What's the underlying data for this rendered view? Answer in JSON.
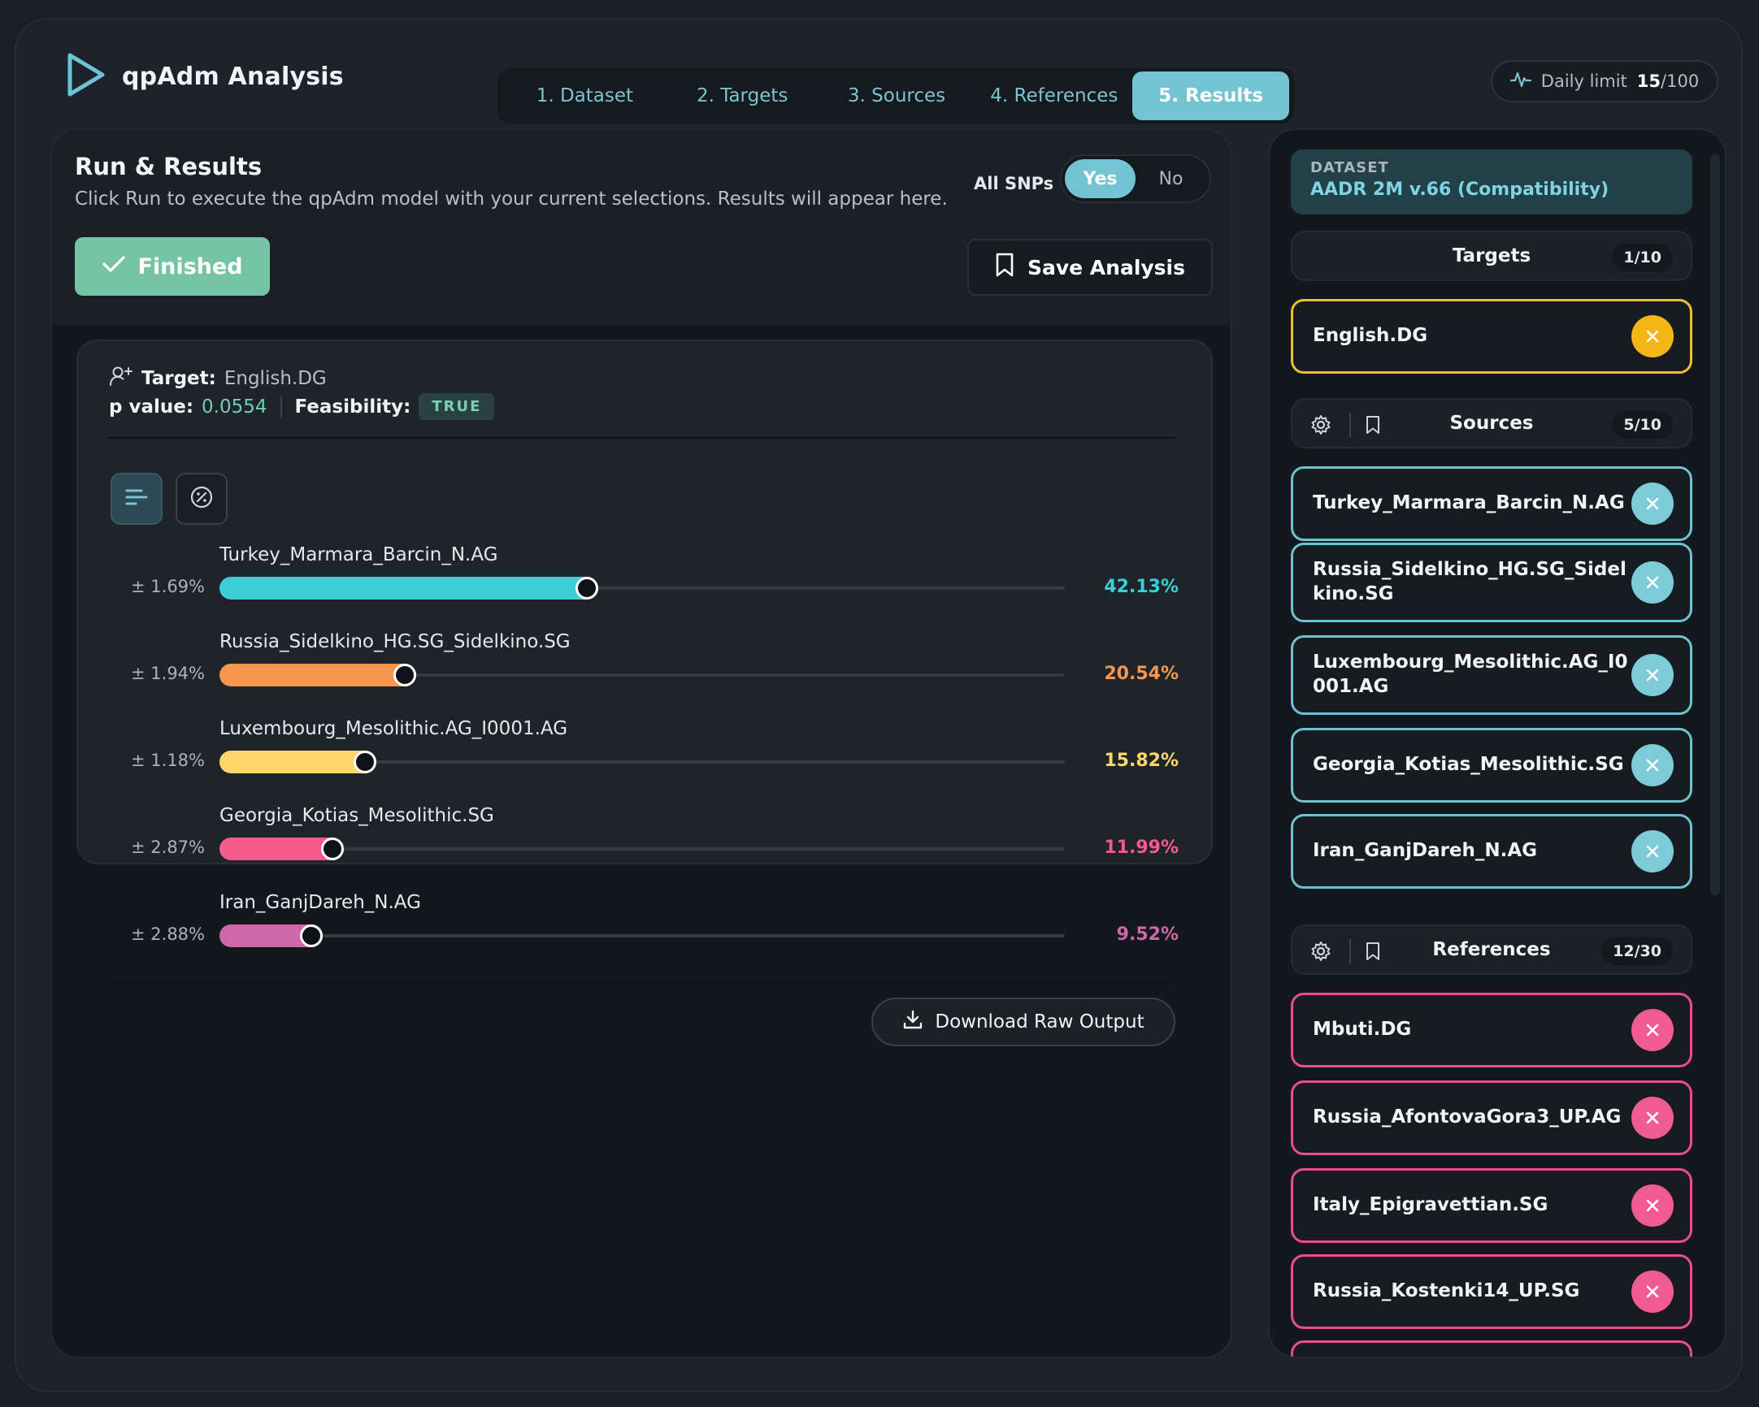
{
  "app": {
    "title": "qpAdm Analysis"
  },
  "tabs": [
    {
      "label": "1. Dataset",
      "active": false
    },
    {
      "label": "2. Targets",
      "active": false
    },
    {
      "label": "3. Sources",
      "active": false
    },
    {
      "label": "4. References",
      "active": false
    },
    {
      "label": "5. Results",
      "active": true
    }
  ],
  "daily_limit": {
    "label": "Daily limit",
    "used": "15",
    "total": "/100"
  },
  "run": {
    "title": "Run & Results",
    "subtitle": "Click Run to execute the qpAdm model with your current selections. Results will appear here.",
    "all_snps_label": "All SNPs",
    "snps_yes": "Yes",
    "snps_no": "No",
    "snps_selected": "Yes",
    "status_label": "Finished",
    "save_label": "Save Analysis"
  },
  "result": {
    "target_label": "Target:",
    "target_value": "English.DG",
    "pvalue_label": "p value:",
    "pvalue": "0.0554",
    "feasibility_label": "Feasibility:",
    "feasibility": "TRUE",
    "download_label": "Download Raw Output",
    "components": [
      {
        "name": "Turkey_Marmara_Barcin_N.AG",
        "error": "± 1.69%",
        "percent": "42.13%",
        "value": 42.13,
        "color": "#3dcfd6"
      },
      {
        "name": "Russia_Sidelkino_HG.SG_Sidelkino.SG",
        "error": "± 1.94%",
        "percent": "20.54%",
        "value": 20.54,
        "color": "#f7974e"
      },
      {
        "name": "Luxembourg_Mesolithic.AG_I0001.AG",
        "error": "± 1.18%",
        "percent": "15.82%",
        "value": 15.82,
        "color": "#fed76a"
      },
      {
        "name": "Georgia_Kotias_Mesolithic.SG",
        "error": "± 2.87%",
        "percent": "11.99%",
        "value": 11.99,
        "color": "#f65a8d"
      },
      {
        "name": "Iran_GanjDareh_N.AG",
        "error": "± 2.88%",
        "percent": "9.52%",
        "value": 9.52,
        "color": "#cf68a8"
      }
    ]
  },
  "sidebar": {
    "dataset_label": "DATASET",
    "dataset_value": "AADR 2M v.66 (Compatibility)",
    "targets": {
      "title": "Targets",
      "count": "1/10",
      "items": [
        "English.DG"
      ]
    },
    "sources": {
      "title": "Sources",
      "count": "5/10",
      "items": [
        "Turkey_Marmara_Barcin_N.AG",
        "Russia_Sidelkino_HG.SG_Sidelkino.SG",
        "Luxembourg_Mesolithic.AG_I0001.AG",
        "Georgia_Kotias_Mesolithic.SG",
        "Iran_GanjDareh_N.AG"
      ]
    },
    "references": {
      "title": "References",
      "count": "12/30",
      "items": [
        "Mbuti.DG",
        "Russia_AfontovaGora3_UP.AG",
        "Italy_Epigravettian.SG",
        "Russia_Kostenki14_UP.SG",
        ""
      ]
    }
  },
  "icons": {
    "logo": "play-outline-icon",
    "daily": "activity-icon",
    "finished": "check-icon",
    "save": "bookmark-icon",
    "target": "user-share-icon",
    "bar_view": "bars-icon",
    "percent_view": "percent-icon",
    "download": "download-icon",
    "remove": "close-icon",
    "settings": "gear-icon",
    "saved": "bookmark-icon"
  }
}
